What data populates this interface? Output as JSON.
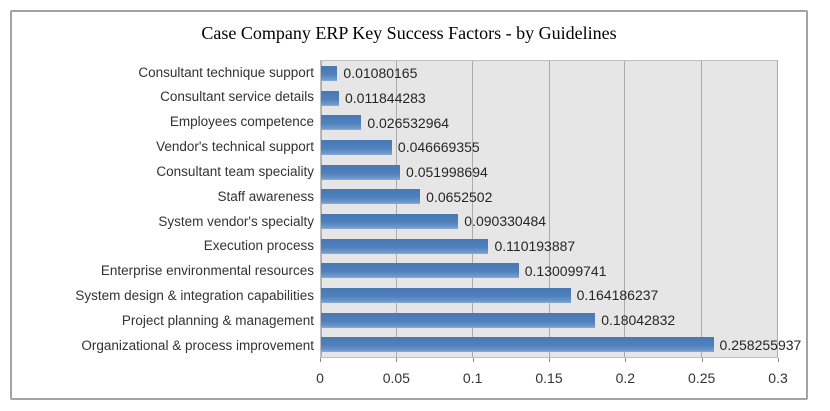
{
  "frame": {
    "border_color": "#A3A3A3",
    "background": "#FFFFFF"
  },
  "chart_data": {
    "type": "bar",
    "orientation": "horizontal",
    "title": "Case Company ERP Key Success Factors - by Guidelines",
    "categories": [
      "Consultant technique support",
      "Consultant service details",
      "Employees competence",
      "Vendor's technical support",
      "Consultant team speciality",
      "Staff awareness",
      "System vendor's specialty",
      "Execution process",
      "Enterprise environmental resources",
      "System design & integration capabilities",
      "Project planning & management",
      "Organizational & process improvement"
    ],
    "values": [
      0.01080165,
      0.011844283,
      0.026532964,
      0.046669355,
      0.051998694,
      0.0652502,
      0.090330484,
      0.110193887,
      0.130099741,
      0.164186237,
      0.18042832,
      0.258255937
    ],
    "value_labels": [
      "0.01080165",
      "0.011844283",
      "0.026532964",
      "0.046669355",
      "0.051998694",
      "0.0652502",
      "0.090330484",
      "0.110193887",
      "0.130099741",
      "0.164186237",
      "0.18042832",
      "0.258255937"
    ],
    "x_ticks": [
      {
        "label": "0",
        "value": 0
      },
      {
        "label": "0.05",
        "value": 0.05
      },
      {
        "label": "0.1",
        "value": 0.1
      },
      {
        "label": "0.15",
        "value": 0.15
      },
      {
        "label": "0.2",
        "value": 0.2
      },
      {
        "label": "0.25",
        "value": 0.25
      },
      {
        "label": "0.3",
        "value": 0.3
      }
    ],
    "xlim": [
      0,
      0.3
    ],
    "grid": true,
    "legend_position": "none",
    "colors": {
      "bar": "#4E81BD",
      "plot_bg": "#E6E6E6",
      "gridline": "#ABABAB",
      "plot_border": "#BFBFBF",
      "text": "#333333"
    }
  }
}
